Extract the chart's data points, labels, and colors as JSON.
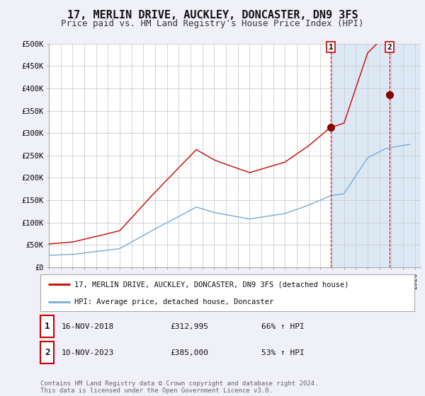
{
  "title": "17, MERLIN DRIVE, AUCKLEY, DONCASTER, DN9 3FS",
  "subtitle": "Price paid vs. HM Land Registry's House Price Index (HPI)",
  "title_fontsize": 11,
  "subtitle_fontsize": 9,
  "background_color": "#f0f0f8",
  "plot_background_color": "#ffffff",
  "grid_color": "#cccccc",
  "red_line_color": "#cc0000",
  "blue_line_color": "#7aaad0",
  "vline_color": "#cc0000",
  "shade_color": "#dde8f5",
  "ylim": [
    0,
    500000
  ],
  "yticks": [
    0,
    50000,
    100000,
    150000,
    200000,
    250000,
    300000,
    350000,
    400000,
    450000,
    500000
  ],
  "ytick_labels": [
    "£0",
    "£50K",
    "£100K",
    "£150K",
    "£200K",
    "£250K",
    "£300K",
    "£350K",
    "£400K",
    "£450K",
    "£500K"
  ],
  "xlim_start": 1995.0,
  "xlim_end": 2026.5,
  "point1_x": 2018.88,
  "point1_y": 312995,
  "point2_x": 2023.86,
  "point2_y": 385000,
  "vline1_x": 2018.88,
  "vline2_x": 2023.86,
  "shade_start": 2018.88,
  "shade_end": 2026.5,
  "legend_line1": "17, MERLIN DRIVE, AUCKLEY, DONCASTER, DN9 3FS (detached house)",
  "legend_line2": "HPI: Average price, detached house, Doncaster",
  "table_row1": [
    "1",
    "16-NOV-2018",
    "£312,995",
    "66% ↑ HPI"
  ],
  "table_row2": [
    "2",
    "10-NOV-2023",
    "£385,000",
    "53% ↑ HPI"
  ],
  "footnote": "Contains HM Land Registry data © Crown copyright and database right 2024.\nThis data is licensed under the Open Government Licence v3.0."
}
